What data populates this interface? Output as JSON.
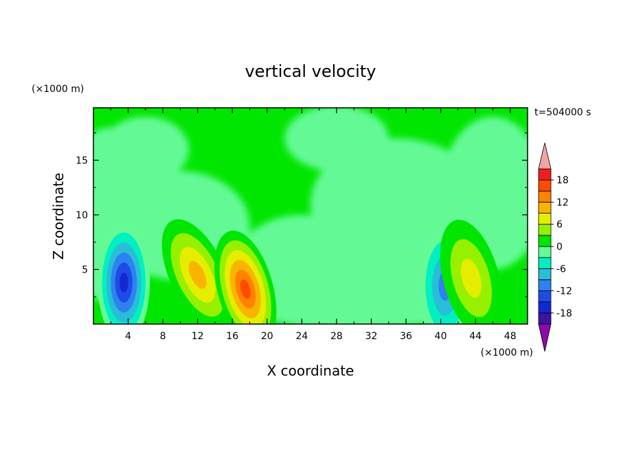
{
  "chart_data": {
    "type": "heatmap",
    "title": "vertical velocity",
    "xlabel": "X coordinate",
    "ylabel": "Z coordinate",
    "x_unit": "(×1000 m)",
    "y_unit": "(×1000 m)",
    "time_label": "t=504000 s",
    "xlim": [
      0,
      50
    ],
    "ylim": [
      0,
      19.8
    ],
    "x_ticks": [
      4,
      8,
      12,
      16,
      20,
      24,
      28,
      32,
      36,
      40,
      44,
      48
    ],
    "y_ticks": [
      5,
      10,
      15
    ],
    "colorbar": {
      "levels": [
        -21,
        -18,
        -15,
        -12,
        -9,
        -6,
        -3,
        0,
        3,
        6,
        9,
        12,
        15,
        18,
        21
      ],
      "tick_labels": [
        "-18",
        "-12",
        "-6",
        "0",
        "6",
        "12",
        "18"
      ],
      "colors": [
        "#8c0aa8",
        "#3c14a0",
        "#1428d2",
        "#1e4be6",
        "#2d82f0",
        "#28bed7",
        "#00f0c3",
        "#64fa96",
        "#00e600",
        "#96f000",
        "#e6ee00",
        "#fab400",
        "#ff8200",
        "#ff4b00",
        "#ee1e1e",
        "#f5a3a3"
      ],
      "extend": "both"
    },
    "features": [
      {
        "type": "downdraft",
        "x": 3.5,
        "z": 3.8,
        "value": -14
      },
      {
        "type": "updraft",
        "x": 12.0,
        "z": 4.5,
        "value": 8
      },
      {
        "type": "updraft",
        "x": 17.5,
        "z": 3.2,
        "value": 15
      },
      {
        "type": "downdraft",
        "x": 40.5,
        "z": 3.5,
        "value": -9
      },
      {
        "type": "updraft",
        "x": 43.5,
        "z": 4.2,
        "value": 5
      }
    ]
  }
}
